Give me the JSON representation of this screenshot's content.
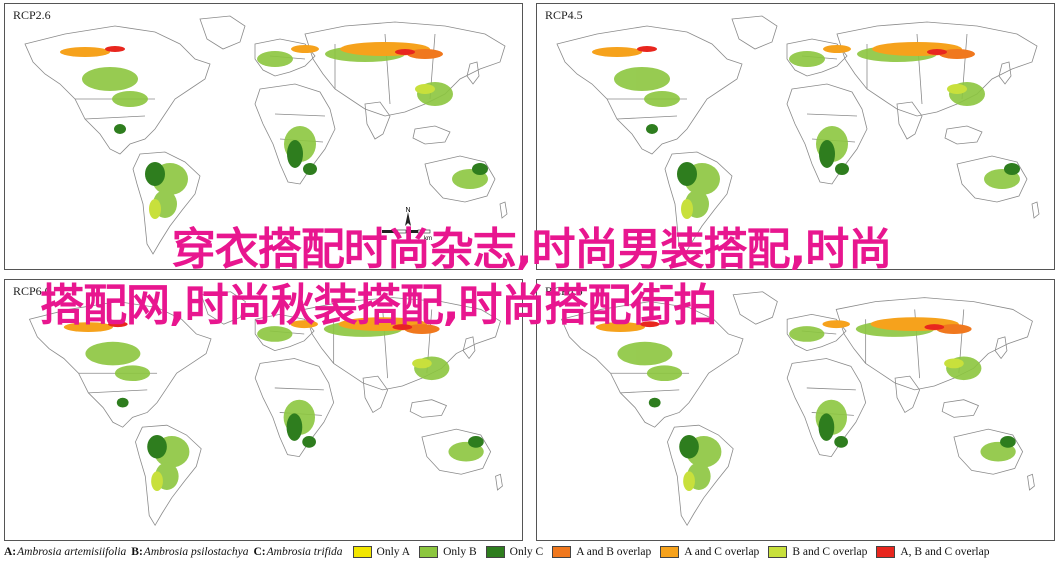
{
  "panels": [
    {
      "label": "RCP2.6"
    },
    {
      "label": "RCP4.5"
    },
    {
      "label": "RCP6.0"
    },
    {
      "label": "RCP8.5"
    }
  ],
  "compass": {
    "north": "N",
    "scale_label": "km"
  },
  "headline": {
    "line1": "穿衣搭配时尚杂志,时尚男装搭配,时尚",
    "line2": "搭配网,时尚秋装搭配,时尚搭配街拍",
    "color": "#e8168f"
  },
  "legend": {
    "species": [
      {
        "key": "A:",
        "name": "Ambrosia artemisiifolia"
      },
      {
        "key": "B:",
        "name": "Ambrosia psilostachya"
      },
      {
        "key": "C:",
        "name": "Ambrosia trifida"
      }
    ],
    "categories": [
      {
        "label": "Only A",
        "color": "#f2e600"
      },
      {
        "label": "Only B",
        "color": "#8cc63f"
      },
      {
        "label": "Only C",
        "color": "#2e7d1e"
      },
      {
        "label": "A and B overlap",
        "color": "#f0781e"
      },
      {
        "label": "A and C overlap",
        "color": "#f6a21c"
      },
      {
        "label": "B and C overlap",
        "color": "#c8e03c"
      },
      {
        "label": "A, B and C overlap",
        "color": "#e8261e"
      }
    ]
  },
  "map_colors": {
    "land_outline": "#8a8a8a",
    "green_light": "#8cc63f",
    "green_dark": "#2e7d1e",
    "yellow_green": "#c8e03c",
    "orange": "#f6a21c",
    "red": "#e8261e"
  }
}
